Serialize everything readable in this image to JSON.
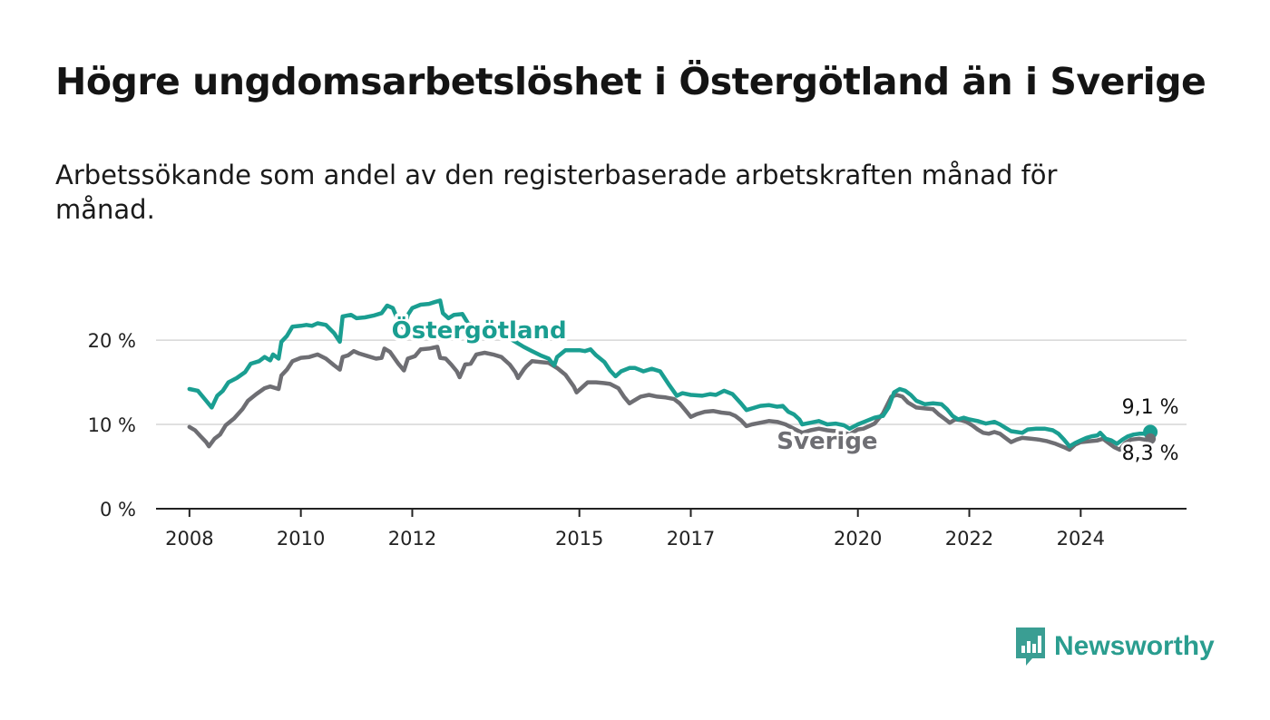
{
  "header": {
    "title": "Högre ungdomsarbetslöshet i Östergötland än i Sverige",
    "subtitle": "Arbetssökande som andel av den registerbaserade arbetskraften månad för månad."
  },
  "brand": {
    "name": "Newsworthy",
    "icon": "newsworthy-logo-icon",
    "color": "#3a9e93"
  },
  "chart_data": {
    "type": "line",
    "title": "Högre ungdomsarbetslöshet i Östergötland än i Sverige",
    "subtitle": "Arbetssökande som andel av den registerbaserade arbetskraften månad för månad.",
    "xlabel": "",
    "ylabel": "",
    "x_ticks": [
      "2008",
      "2010",
      "2012",
      "2015",
      "2017",
      "2020",
      "2022",
      "2024"
    ],
    "y_ticks": [
      "0 %",
      "10 %",
      "20 %"
    ],
    "ylim": [
      0,
      27
    ],
    "xlim": [
      2007.4,
      2025.9
    ],
    "grid": true,
    "legend": "inline labels",
    "series": [
      {
        "name": "Östergötland",
        "color": "#1a9e91",
        "end_label": "9,1 %",
        "points": [
          [
            2008.0,
            14.2
          ],
          [
            2008.15,
            14.0
          ],
          [
            2008.3,
            12.8
          ],
          [
            2008.4,
            12.0
          ],
          [
            2008.5,
            13.4
          ],
          [
            2008.6,
            14.0
          ],
          [
            2008.7,
            15.0
          ],
          [
            2008.85,
            15.5
          ],
          [
            2009.0,
            16.2
          ],
          [
            2009.1,
            17.2
          ],
          [
            2009.25,
            17.5
          ],
          [
            2009.35,
            18.0
          ],
          [
            2009.45,
            17.6
          ],
          [
            2009.5,
            18.3
          ],
          [
            2009.6,
            17.8
          ],
          [
            2009.65,
            19.8
          ],
          [
            2009.75,
            20.5
          ],
          [
            2009.85,
            21.6
          ],
          [
            2010.0,
            21.7
          ],
          [
            2010.1,
            21.8
          ],
          [
            2010.2,
            21.7
          ],
          [
            2010.3,
            22.0
          ],
          [
            2010.45,
            21.8
          ],
          [
            2010.6,
            20.8
          ],
          [
            2010.7,
            19.8
          ],
          [
            2010.75,
            22.8
          ],
          [
            2010.9,
            23.0
          ],
          [
            2011.0,
            22.6
          ],
          [
            2011.15,
            22.7
          ],
          [
            2011.3,
            22.9
          ],
          [
            2011.45,
            23.2
          ],
          [
            2011.55,
            24.1
          ],
          [
            2011.65,
            23.8
          ],
          [
            2011.75,
            22.3
          ],
          [
            2011.85,
            21.4
          ],
          [
            2011.92,
            23.0
          ],
          [
            2012.0,
            23.8
          ],
          [
            2012.15,
            24.2
          ],
          [
            2012.3,
            24.3
          ],
          [
            2012.4,
            24.5
          ],
          [
            2012.5,
            24.7
          ],
          [
            2012.55,
            23.2
          ],
          [
            2012.65,
            22.6
          ],
          [
            2012.75,
            23.0
          ],
          [
            2012.9,
            23.1
          ],
          [
            2013.0,
            22.0
          ],
          [
            2013.2,
            21.5
          ],
          [
            2013.5,
            20.6
          ],
          [
            2013.7,
            20.4
          ],
          [
            2013.85,
            19.8
          ],
          [
            2014.0,
            19.2
          ],
          [
            2014.15,
            18.7
          ],
          [
            2014.3,
            18.2
          ],
          [
            2014.45,
            17.8
          ],
          [
            2014.55,
            17.0
          ],
          [
            2014.6,
            18.0
          ],
          [
            2014.75,
            18.8
          ],
          [
            2015.0,
            18.8
          ],
          [
            2015.1,
            18.7
          ],
          [
            2015.2,
            18.9
          ],
          [
            2015.3,
            18.2
          ],
          [
            2015.45,
            17.4
          ],
          [
            2015.55,
            16.4
          ],
          [
            2015.65,
            15.7
          ],
          [
            2015.75,
            16.3
          ],
          [
            2015.9,
            16.7
          ],
          [
            2016.0,
            16.7
          ],
          [
            2016.15,
            16.3
          ],
          [
            2016.3,
            16.6
          ],
          [
            2016.45,
            16.3
          ],
          [
            2016.6,
            14.8
          ],
          [
            2016.75,
            13.4
          ],
          [
            2016.85,
            13.7
          ],
          [
            2017.0,
            13.5
          ],
          [
            2017.2,
            13.4
          ],
          [
            2017.35,
            13.6
          ],
          [
            2017.45,
            13.5
          ],
          [
            2017.6,
            14.0
          ],
          [
            2017.75,
            13.6
          ],
          [
            2017.9,
            12.5
          ],
          [
            2018.0,
            11.7
          ],
          [
            2018.1,
            11.9
          ],
          [
            2018.25,
            12.2
          ],
          [
            2018.4,
            12.3
          ],
          [
            2018.55,
            12.1
          ],
          [
            2018.65,
            12.2
          ],
          [
            2018.75,
            11.5
          ],
          [
            2018.85,
            11.2
          ],
          [
            2018.95,
            10.6
          ],
          [
            2019.0,
            10.0
          ],
          [
            2019.15,
            10.2
          ],
          [
            2019.3,
            10.4
          ],
          [
            2019.45,
            10.0
          ],
          [
            2019.6,
            10.1
          ],
          [
            2019.75,
            9.9
          ],
          [
            2019.85,
            9.5
          ],
          [
            2020.0,
            10.0
          ],
          [
            2020.15,
            10.4
          ],
          [
            2020.3,
            10.8
          ],
          [
            2020.45,
            11.0
          ],
          [
            2020.55,
            12.0
          ],
          [
            2020.65,
            13.8
          ],
          [
            2020.75,
            14.2
          ],
          [
            2020.85,
            14.0
          ],
          [
            2020.95,
            13.5
          ],
          [
            2021.05,
            12.8
          ],
          [
            2021.2,
            12.4
          ],
          [
            2021.35,
            12.5
          ],
          [
            2021.5,
            12.4
          ],
          [
            2021.6,
            11.8
          ],
          [
            2021.7,
            11.0
          ],
          [
            2021.8,
            10.6
          ],
          [
            2021.9,
            10.8
          ],
          [
            2022.0,
            10.6
          ],
          [
            2022.15,
            10.4
          ],
          [
            2022.3,
            10.1
          ],
          [
            2022.45,
            10.3
          ],
          [
            2022.55,
            10.0
          ],
          [
            2022.65,
            9.6
          ],
          [
            2022.75,
            9.2
          ],
          [
            2022.85,
            9.1
          ],
          [
            2022.95,
            9.0
          ],
          [
            2023.05,
            9.4
          ],
          [
            2023.2,
            9.5
          ],
          [
            2023.35,
            9.5
          ],
          [
            2023.5,
            9.3
          ],
          [
            2023.6,
            8.9
          ],
          [
            2023.7,
            8.2
          ],
          [
            2023.8,
            7.4
          ],
          [
            2023.9,
            7.8
          ],
          [
            2024.0,
            8.1
          ],
          [
            2024.1,
            8.4
          ],
          [
            2024.2,
            8.6
          ],
          [
            2024.3,
            8.7
          ],
          [
            2024.35,
            9.0
          ],
          [
            2024.45,
            8.3
          ],
          [
            2024.55,
            8.1
          ],
          [
            2024.65,
            7.7
          ],
          [
            2024.75,
            8.2
          ],
          [
            2024.85,
            8.6
          ],
          [
            2024.95,
            8.8
          ],
          [
            2025.05,
            8.9
          ],
          [
            2025.15,
            8.9
          ],
          [
            2025.25,
            9.1
          ]
        ]
      },
      {
        "name": "Sverige",
        "color": "#6e6e73",
        "end_label": "8,3 %",
        "points": [
          [
            2008.0,
            9.7
          ],
          [
            2008.1,
            9.3
          ],
          [
            2008.2,
            8.6
          ],
          [
            2008.3,
            7.9
          ],
          [
            2008.35,
            7.4
          ],
          [
            2008.45,
            8.3
          ],
          [
            2008.55,
            8.8
          ],
          [
            2008.65,
            9.9
          ],
          [
            2008.8,
            10.7
          ],
          [
            2008.95,
            11.8
          ],
          [
            2009.05,
            12.8
          ],
          [
            2009.2,
            13.6
          ],
          [
            2009.35,
            14.3
          ],
          [
            2009.45,
            14.5
          ],
          [
            2009.6,
            14.2
          ],
          [
            2009.65,
            15.8
          ],
          [
            2009.75,
            16.5
          ],
          [
            2009.85,
            17.5
          ],
          [
            2010.0,
            17.9
          ],
          [
            2010.15,
            18.0
          ],
          [
            2010.3,
            18.3
          ],
          [
            2010.45,
            17.8
          ],
          [
            2010.6,
            17.0
          ],
          [
            2010.7,
            16.5
          ],
          [
            2010.75,
            18.0
          ],
          [
            2010.85,
            18.2
          ],
          [
            2010.95,
            18.7
          ],
          [
            2011.05,
            18.4
          ],
          [
            2011.2,
            18.1
          ],
          [
            2011.35,
            17.8
          ],
          [
            2011.45,
            17.9
          ],
          [
            2011.5,
            19.0
          ],
          [
            2011.6,
            18.6
          ],
          [
            2011.75,
            17.2
          ],
          [
            2011.85,
            16.4
          ],
          [
            2011.92,
            17.8
          ],
          [
            2012.05,
            18.1
          ],
          [
            2012.15,
            18.9
          ],
          [
            2012.3,
            19.0
          ],
          [
            2012.45,
            19.2
          ],
          [
            2012.5,
            17.9
          ],
          [
            2012.6,
            17.8
          ],
          [
            2012.7,
            17.1
          ],
          [
            2012.8,
            16.3
          ],
          [
            2012.85,
            15.6
          ],
          [
            2012.95,
            17.1
          ],
          [
            2013.05,
            17.2
          ],
          [
            2013.15,
            18.3
          ],
          [
            2013.3,
            18.5
          ],
          [
            2013.45,
            18.3
          ],
          [
            2013.6,
            18.0
          ],
          [
            2013.75,
            17.1
          ],
          [
            2013.85,
            16.2
          ],
          [
            2013.9,
            15.5
          ],
          [
            2014.0,
            16.5
          ],
          [
            2014.05,
            16.9
          ],
          [
            2014.15,
            17.5
          ],
          [
            2014.3,
            17.4
          ],
          [
            2014.45,
            17.3
          ],
          [
            2014.6,
            16.7
          ],
          [
            2014.75,
            15.9
          ],
          [
            2014.9,
            14.5
          ],
          [
            2014.95,
            13.8
          ],
          [
            2015.05,
            14.4
          ],
          [
            2015.15,
            15.0
          ],
          [
            2015.3,
            15.0
          ],
          [
            2015.45,
            14.9
          ],
          [
            2015.55,
            14.8
          ],
          [
            2015.7,
            14.3
          ],
          [
            2015.8,
            13.3
          ],
          [
            2015.9,
            12.5
          ],
          [
            2016.0,
            12.9
          ],
          [
            2016.1,
            13.3
          ],
          [
            2016.25,
            13.5
          ],
          [
            2016.4,
            13.3
          ],
          [
            2016.55,
            13.2
          ],
          [
            2016.7,
            13.0
          ],
          [
            2016.8,
            12.5
          ],
          [
            2016.9,
            11.7
          ],
          [
            2017.0,
            10.9
          ],
          [
            2017.1,
            11.2
          ],
          [
            2017.25,
            11.5
          ],
          [
            2017.4,
            11.6
          ],
          [
            2017.55,
            11.4
          ],
          [
            2017.7,
            11.3
          ],
          [
            2017.8,
            11.0
          ],
          [
            2017.9,
            10.5
          ],
          [
            2018.0,
            9.8
          ],
          [
            2018.1,
            10.0
          ],
          [
            2018.25,
            10.2
          ],
          [
            2018.4,
            10.4
          ],
          [
            2018.55,
            10.3
          ],
          [
            2018.7,
            10.0
          ],
          [
            2018.85,
            9.5
          ],
          [
            2019.0,
            9.0
          ],
          [
            2019.15,
            9.3
          ],
          [
            2019.3,
            9.5
          ],
          [
            2019.45,
            9.3
          ],
          [
            2019.6,
            9.2
          ],
          [
            2019.75,
            9.0
          ],
          [
            2019.85,
            8.8
          ],
          [
            2020.0,
            9.4
          ],
          [
            2020.1,
            9.5
          ],
          [
            2020.2,
            9.8
          ],
          [
            2020.3,
            10.1
          ],
          [
            2020.45,
            11.3
          ],
          [
            2020.6,
            13.3
          ],
          [
            2020.7,
            13.5
          ],
          [
            2020.8,
            13.3
          ],
          [
            2020.9,
            12.6
          ],
          [
            2021.05,
            12.0
          ],
          [
            2021.2,
            11.9
          ],
          [
            2021.35,
            11.8
          ],
          [
            2021.45,
            11.2
          ],
          [
            2021.55,
            10.7
          ],
          [
            2021.65,
            10.2
          ],
          [
            2021.75,
            10.6
          ],
          [
            2021.85,
            10.5
          ],
          [
            2021.95,
            10.3
          ],
          [
            2022.05,
            9.9
          ],
          [
            2022.15,
            9.4
          ],
          [
            2022.25,
            9.0
          ],
          [
            2022.35,
            8.9
          ],
          [
            2022.45,
            9.1
          ],
          [
            2022.55,
            8.9
          ],
          [
            2022.65,
            8.4
          ],
          [
            2022.75,
            7.9
          ],
          [
            2022.85,
            8.2
          ],
          [
            2022.95,
            8.4
          ],
          [
            2023.1,
            8.3
          ],
          [
            2023.25,
            8.2
          ],
          [
            2023.4,
            8.0
          ],
          [
            2023.55,
            7.7
          ],
          [
            2023.7,
            7.3
          ],
          [
            2023.8,
            7.0
          ],
          [
            2023.9,
            7.6
          ],
          [
            2024.0,
            7.9
          ],
          [
            2024.15,
            8.0
          ],
          [
            2024.3,
            8.1
          ],
          [
            2024.4,
            8.3
          ],
          [
            2024.5,
            7.8
          ],
          [
            2024.6,
            7.3
          ],
          [
            2024.7,
            7.0
          ],
          [
            2024.8,
            7.8
          ],
          [
            2024.9,
            8.2
          ],
          [
            2025.05,
            8.3
          ],
          [
            2025.15,
            8.2
          ],
          [
            2025.25,
            8.3
          ]
        ]
      }
    ]
  }
}
